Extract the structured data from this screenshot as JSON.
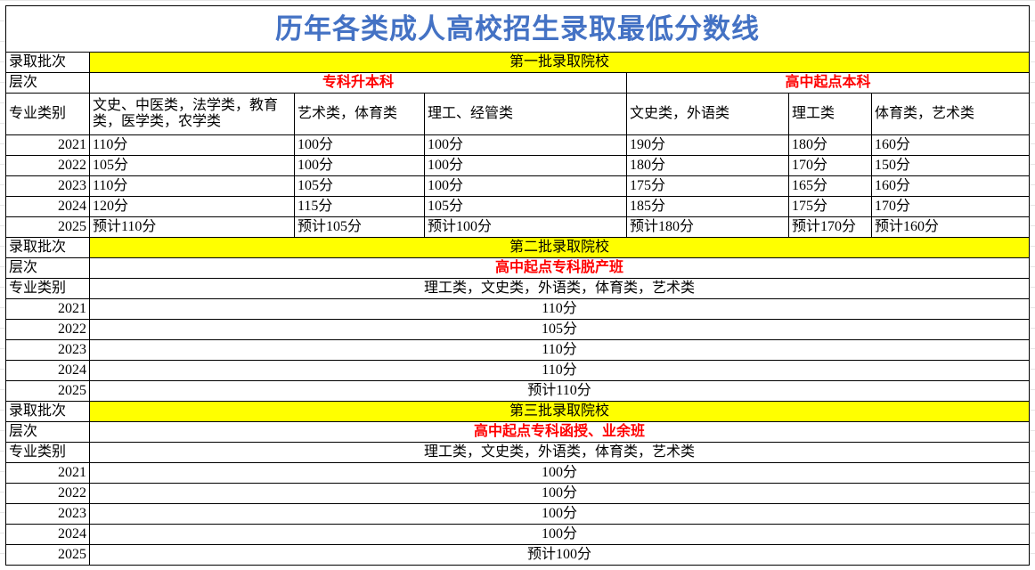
{
  "title": "历年各类成人高校招生录取最低分数线",
  "labels": {
    "batch": "录取批次",
    "level": "层次",
    "category": "专业类别"
  },
  "colors": {
    "title": "#4472c4",
    "batch_fill": "#ffff00",
    "level_text": "#ff0000"
  },
  "batch1": {
    "name": "第一批录取院校",
    "levels": [
      "专科升本科",
      "高中起点本科"
    ],
    "categories": [
      "文史、中医类，法学类，教育类，医学类，农学类",
      "艺术类，体育类",
      "理工、经管类",
      "文史类，外语类",
      "理工类",
      "体育类，艺术类"
    ],
    "rows": [
      {
        "year": "2021",
        "values": [
          "110分",
          "100分",
          "100分",
          "190分",
          "180分",
          "160分"
        ]
      },
      {
        "year": "2022",
        "values": [
          "105分",
          "100分",
          "100分",
          "180分",
          "170分",
          "150分"
        ]
      },
      {
        "year": "2023",
        "values": [
          "110分",
          "105分",
          "100分",
          "175分",
          "165分",
          "160分"
        ]
      },
      {
        "year": "2024",
        "values": [
          "120分",
          "115分",
          "105分",
          "185分",
          "175分",
          "170分"
        ]
      },
      {
        "year": "2025",
        "values": [
          "预计110分",
          "预计105分",
          "预计100分",
          "预计180分",
          "预计170分",
          "预计160分"
        ]
      }
    ]
  },
  "batch2": {
    "name": "第二批录取院校",
    "level": "高中起点专科脱产班",
    "category": "理工类，文史类，外语类，体育类，艺术类",
    "rows": [
      {
        "year": "2021",
        "value": "110分"
      },
      {
        "year": "2022",
        "value": "105分"
      },
      {
        "year": "2023",
        "value": "110分"
      },
      {
        "year": "2024",
        "value": "110分"
      },
      {
        "year": "2025",
        "value": "预计110分"
      }
    ]
  },
  "batch3": {
    "name": "第三批录取院校",
    "level": "高中起点专科函授、业余班",
    "category": "理工类，文史类，外语类，体育类，艺术类",
    "rows": [
      {
        "year": "2021",
        "value": "100分"
      },
      {
        "year": "2022",
        "value": "100分"
      },
      {
        "year": "2023",
        "value": "100分"
      },
      {
        "year": "2024",
        "value": "100分"
      },
      {
        "year": "2025",
        "value": "预计100分"
      }
    ]
  }
}
